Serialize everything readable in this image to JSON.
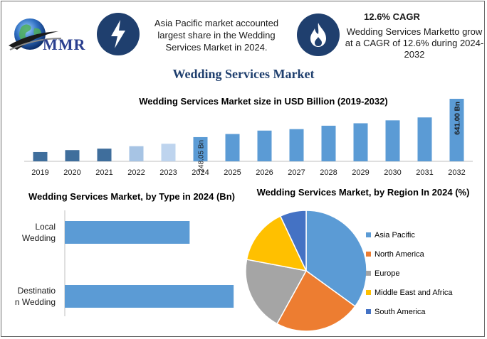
{
  "header": {
    "logo_text": "MMR",
    "highlight_text": "Asia Pacific market accounted largest share in the Wedding Services Market in 2024.",
    "cagr_title": "12.6% CAGR",
    "cagr_text": "Wedding Services Marketto grow at a CAGR of 12.6% during 2024-2032",
    "icons": [
      "lightning-bolt-icon",
      "flame-icon"
    ]
  },
  "main_title": "Wedding Services Market",
  "colors": {
    "bar_history": "#3f6e9c",
    "bar_light": "#a7c4e4",
    "bar_lighter": "#bed4ee",
    "bar_main": "#5b9bd5",
    "text_dark": "#1f3f6e"
  },
  "chart_data": [
    {
      "type": "bar",
      "title": "Wedding Services Market size in USD Billion (2019-2032)",
      "categories": [
        "2019",
        "2020",
        "2021",
        "2022",
        "2023",
        "2024",
        "2025",
        "2026",
        "2027",
        "2028",
        "2029",
        "2030",
        "2031",
        "2032"
      ],
      "values": [
        95,
        115,
        130,
        155,
        180,
        248.05,
        280,
        315,
        330,
        365,
        390,
        420,
        450,
        641
      ],
      "data_labels": {
        "2024": "248.05 Bn",
        "2032": "641.00 Bn"
      },
      "xlabel": "",
      "ylabel": "",
      "grid": false
    },
    {
      "type": "bar",
      "orientation": "horizontal",
      "title": "Wedding Services Market, by Type in 2024 (Bn)",
      "categories": [
        "Local Wedding",
        "Destinatio n Wedding"
      ],
      "values": [
        105,
        142
      ],
      "grid": false
    },
    {
      "type": "pie",
      "title": "Wedding Services Market, by Region In 2024 (%)",
      "labels": [
        "Asia Pacific",
        "North America",
        "Europe",
        "Middle East and Africa",
        "South America"
      ],
      "values": [
        35,
        23,
        20,
        15,
        7
      ],
      "colors": [
        "#5b9bd5",
        "#ed7d31",
        "#a5a5a5",
        "#ffc000",
        "#4472c4"
      ],
      "legend": "right"
    }
  ]
}
